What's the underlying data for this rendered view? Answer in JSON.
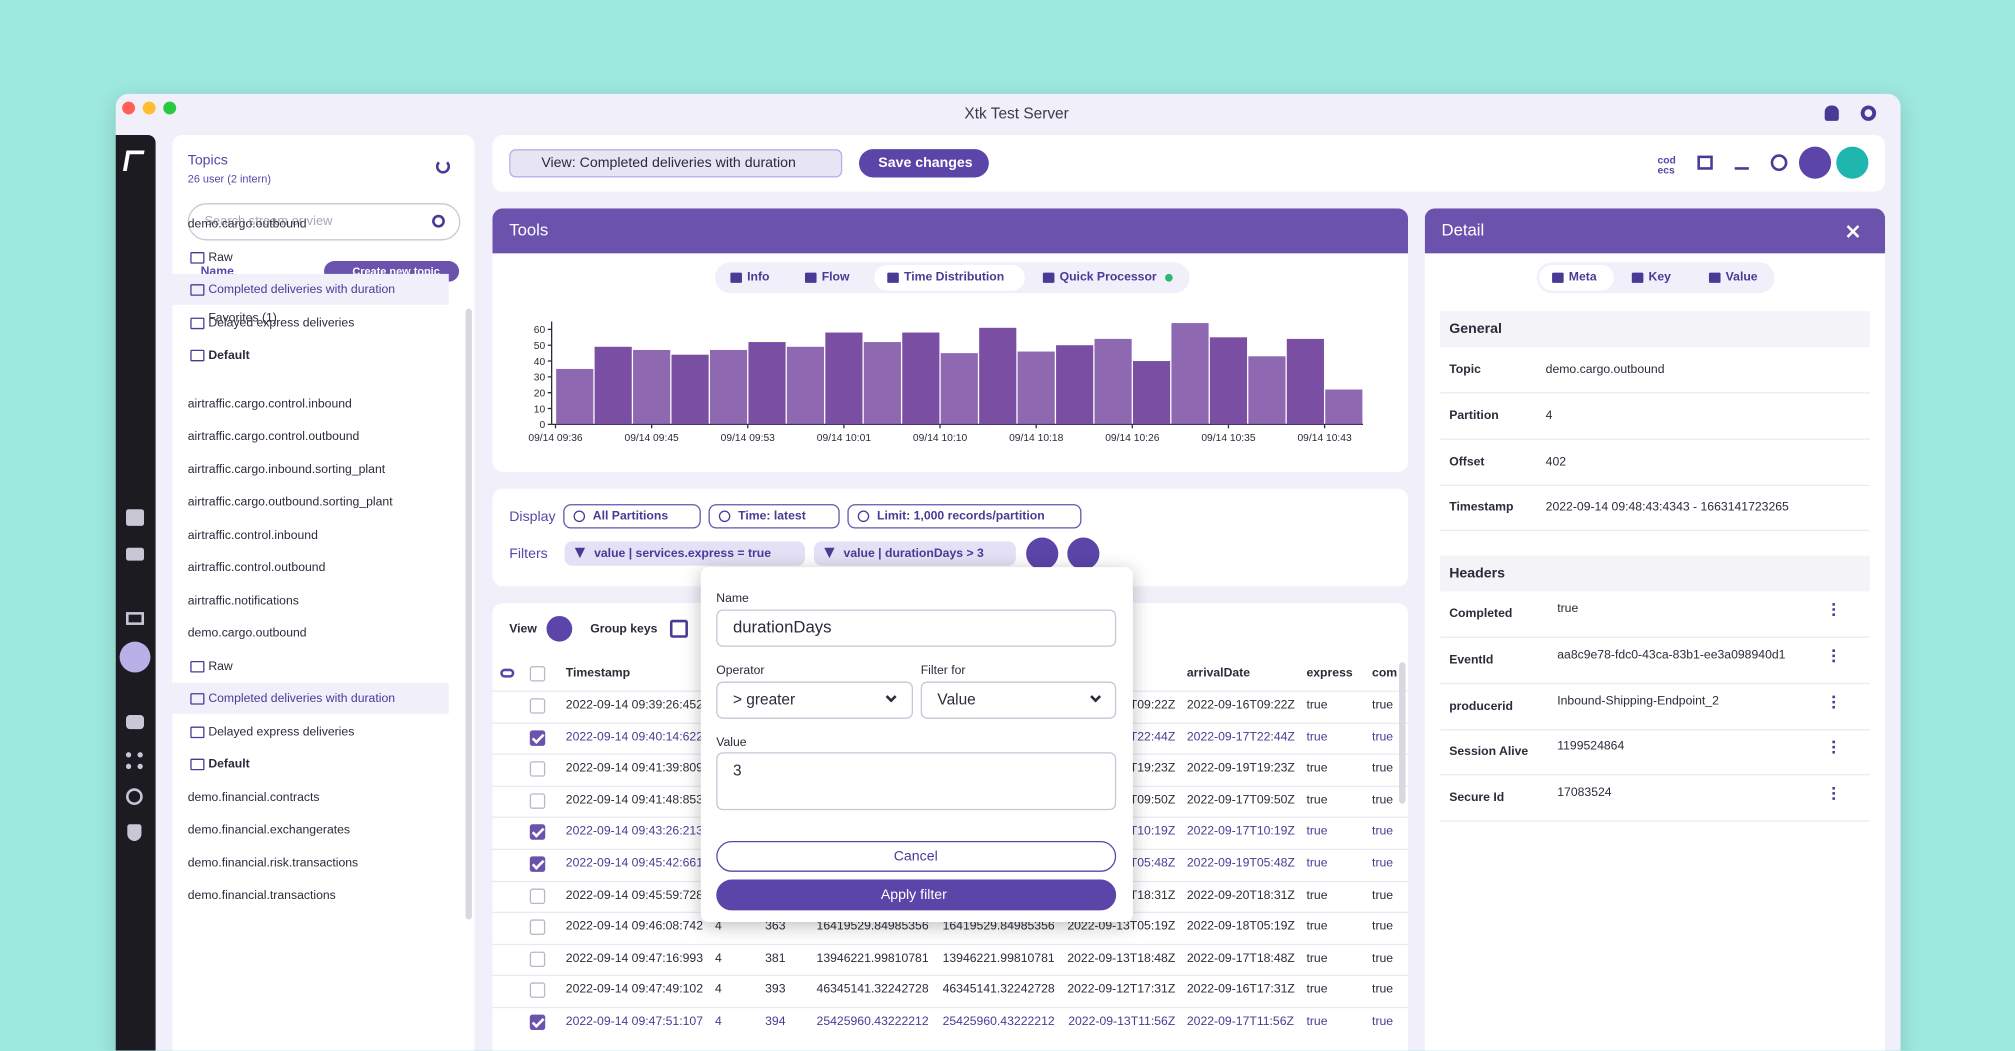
{
  "window": {
    "title": "Xtk Test Server"
  },
  "sidebar": {
    "title": "Topics",
    "subtitle": "26 user (2 intern)",
    "search": "Search stream or view",
    "sort": "Name",
    "create": "Create new topic",
    "favorites": {
      "label": "Favorites (1)",
      "topics": [
        {
          "name": "demo.cargo.outbound",
          "views": [
            "Raw",
            "Completed deliveries with duration",
            "Delayed express deliveries"
          ],
          "default": "Default",
          "selected": 1
        }
      ]
    },
    "topics": [
      {
        "name": "airtraffic.cargo.control.inbound"
      },
      {
        "name": "airtraffic.cargo.control.outbound"
      },
      {
        "name": "airtraffic.cargo.inbound.sorting_plant"
      },
      {
        "name": "airtraffic.cargo.outbound.sorting_plant"
      },
      {
        "name": "airtraffic.control.inbound"
      },
      {
        "name": "airtraffic.control.outbound"
      },
      {
        "name": "airtraffic.notifications"
      },
      {
        "name": "demo.cargo.outbound",
        "views": [
          "Raw",
          "Completed deliveries with duration",
          "Delayed express deliveries"
        ],
        "default": "Default",
        "selected": 1
      },
      {
        "name": "demo.financial.contracts"
      },
      {
        "name": "demo.financial.exchangerates"
      },
      {
        "name": "demo.financial.risk.transactions"
      },
      {
        "name": "demo.financial.transactions"
      }
    ]
  },
  "toolbar": {
    "view": "View: Completed deliveries with duration",
    "save": "Save changes",
    "codecs": "cod ecs"
  },
  "tools": {
    "title": "Tools",
    "tabs": [
      "Info",
      "Flow",
      "Time Distribution",
      "Quick Processor"
    ],
    "active_tab": 2,
    "chart": {
      "type": "bar",
      "categories": [
        null,
        null,
        null,
        null,
        null,
        null,
        null,
        null,
        null,
        null,
        null,
        null,
        null,
        null,
        null,
        null,
        null,
        null,
        null,
        null,
        null
      ],
      "values": [
        35,
        49,
        47,
        44,
        47,
        52,
        49,
        58,
        52,
        58,
        45,
        61,
        46,
        50,
        54,
        40,
        64,
        55,
        43,
        54,
        22
      ],
      "color": "#7a4fa3",
      "ylim": [
        0,
        65
      ],
      "yticks": [
        0,
        10,
        20,
        30,
        40,
        50,
        60
      ],
      "xticks": [
        {
          "value": 0,
          "label": "09/14 09:36"
        },
        {
          "value": 2.5,
          "label": "09/14 09:45"
        },
        {
          "value": 5,
          "label": "09/14 09:53"
        },
        {
          "value": 7.5,
          "label": "09/14 10:01"
        },
        {
          "value": 10,
          "label": "09/14 10:10"
        },
        {
          "value": 12.5,
          "label": "09/14 10:18"
        },
        {
          "value": 15,
          "label": "09/14 10:26"
        },
        {
          "value": 17.5,
          "label": "09/14 10:35"
        },
        {
          "value": 20,
          "label": "09/14 10:43"
        }
      ]
    }
  },
  "display": {
    "label": "Display",
    "chips": [
      "All Partitions",
      "Time: latest",
      "Limit: 1,000 records/partition"
    ],
    "filters_label": "Filters",
    "filters": [
      "value | services.express = true",
      "value | durationDays > 3"
    ]
  },
  "table": {
    "view": "View",
    "group": "Group keys",
    "columns": [
      "Timestamp",
      null,
      null,
      null,
      null,
      null,
      "arrivalDate",
      "express",
      "com"
    ],
    "rows": [
      {
        "checked": false,
        "cells": [
          "2022-09-14 09:39:26:452",
          null,
          null,
          null,
          null,
          "T09:22Z",
          "2022-09-16T09:22Z",
          "true",
          "true"
        ]
      },
      {
        "checked": true,
        "cells": [
          "2022-09-14 09:40:14:622",
          null,
          null,
          null,
          null,
          "T22:44Z",
          "2022-09-17T22:44Z",
          "true",
          "true"
        ]
      },
      {
        "checked": false,
        "cells": [
          "2022-09-14 09:41:39:809",
          null,
          null,
          null,
          null,
          "T19:23Z",
          "2022-09-19T19:23Z",
          "true",
          "true"
        ]
      },
      {
        "checked": false,
        "cells": [
          "2022-09-14 09:41:48:853",
          null,
          null,
          null,
          null,
          "T09:50Z",
          "2022-09-17T09:50Z",
          "true",
          "true"
        ]
      },
      {
        "checked": true,
        "cells": [
          "2022-09-14 09:43:26:213",
          null,
          null,
          null,
          null,
          "T10:19Z",
          "2022-09-17T10:19Z",
          "true",
          "true"
        ]
      },
      {
        "checked": true,
        "cells": [
          "2022-09-14 09:45:42:661",
          null,
          null,
          null,
          null,
          "T05:48Z",
          "2022-09-19T05:48Z",
          "true",
          "true"
        ]
      },
      {
        "checked": false,
        "cells": [
          "2022-09-14 09:45:59:728",
          null,
          null,
          null,
          null,
          "T18:31Z",
          "2022-09-20T18:31Z",
          "true",
          "true"
        ]
      },
      {
        "checked": false,
        "cells": [
          "2022-09-14 09:46:08:742",
          "4",
          "363",
          "16419529.84985356",
          "16419529.84985356",
          "2022-09-13T05:19Z",
          "2022-09-18T05:19Z",
          "true",
          "true"
        ]
      },
      {
        "checked": false,
        "cells": [
          "2022-09-14 09:47:16:993",
          "4",
          "381",
          "13946221.99810781",
          "13946221.99810781",
          "2022-09-13T18:48Z",
          "2022-09-17T18:48Z",
          "true",
          "true"
        ]
      },
      {
        "checked": false,
        "cells": [
          "2022-09-14 09:47:49:102",
          "4",
          "393",
          "46345141.32242728",
          "46345141.32242728",
          "2022-09-12T17:31Z",
          "2022-09-16T17:31Z",
          "true",
          "true"
        ]
      },
      {
        "checked": true,
        "cells": [
          "2022-09-14 09:47:51:107",
          "4",
          "394",
          "25425960.43222212",
          "25425960.43222212",
          "2022-09-13T11:56Z",
          "2022-09-17T11:56Z",
          "true",
          "true"
        ]
      }
    ]
  },
  "dialog": {
    "name_label": "Name",
    "name": "durationDays",
    "operator_label": "Operator",
    "operator": "> greater",
    "filter_for_label": "Filter for",
    "filter_for": "Value",
    "value_label": "Value",
    "value": "3",
    "cancel": "Cancel",
    "apply": "Apply filter"
  },
  "detail": {
    "title": "Detail",
    "tabs": [
      "Meta",
      "Key",
      "Value"
    ],
    "active_tab": 0,
    "general_title": "General",
    "general": [
      [
        "Topic",
        "demo.cargo.outbound"
      ],
      [
        "Partition",
        "4"
      ],
      [
        "Offset",
        "402"
      ],
      [
        "Timestamp",
        "2022-09-14 09:48:43:4343 - 1663141723265"
      ]
    ],
    "headers_title": "Headers",
    "headers": [
      [
        "Completed",
        "true"
      ],
      [
        "EventId",
        "aa8c9e78-fdc0-43ca-83b1-ee3a098940d1"
      ],
      [
        "producerid",
        "Inbound-Shipping-Endpoint_2"
      ],
      [
        "Session Alive",
        "1199524864"
      ],
      [
        "Secure Id",
        "17083524"
      ]
    ]
  }
}
